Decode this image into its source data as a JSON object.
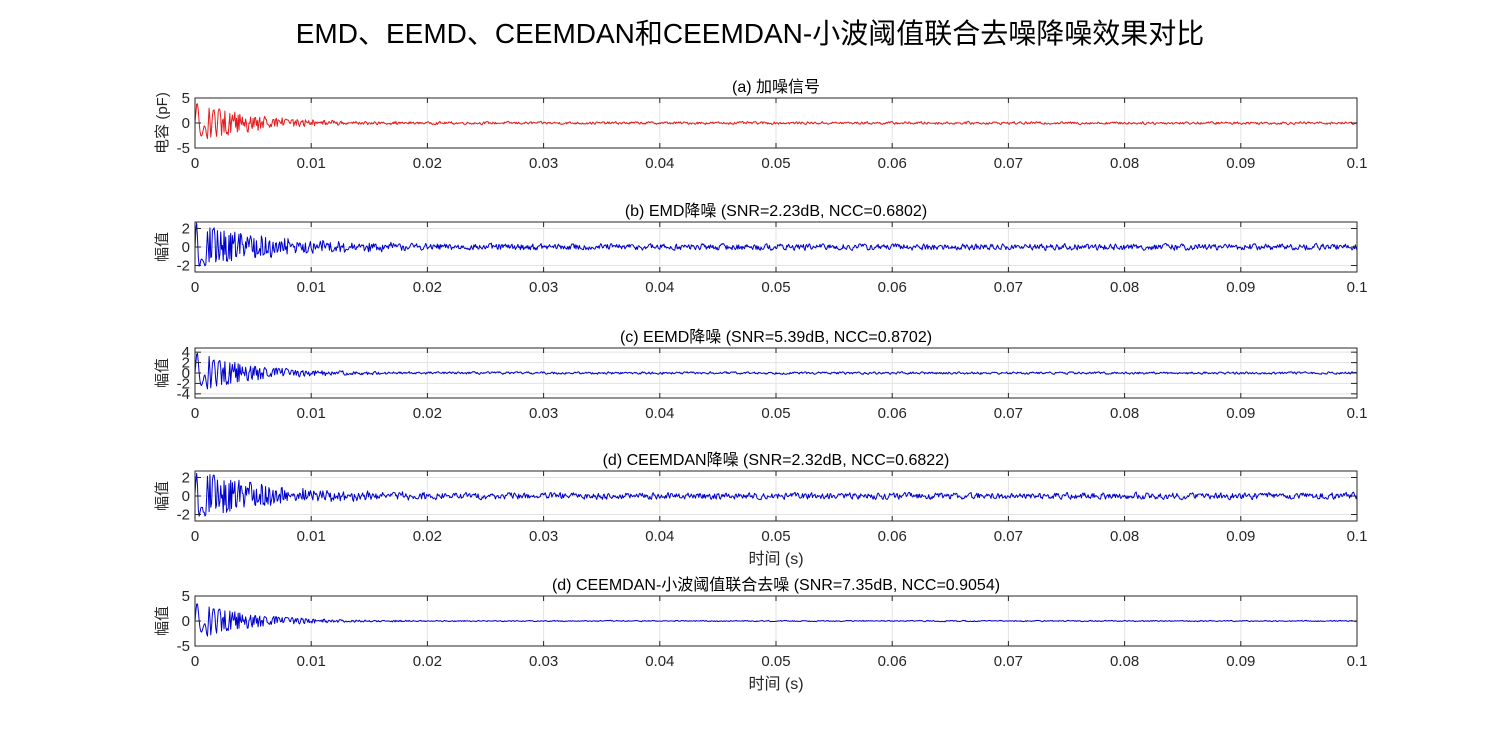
{
  "figure": {
    "title": "EMD、EEMD、CEEMDAN和CEEMDAN-小波阈值联合去噪降噪效果对比"
  },
  "chart_data": [
    {
      "type": "line",
      "title": "(a) 加噪信号",
      "ylabel": "电容 (pF)",
      "xlabel": "",
      "xlim": [
        0,
        0.1
      ],
      "ylim": [
        -5,
        5
      ],
      "xticks": [
        "0",
        "0.01",
        "0.02",
        "0.03",
        "0.04",
        "0.05",
        "0.06",
        "0.07",
        "0.08",
        "0.09",
        "0.1"
      ],
      "yticks": [
        "-5",
        "0",
        "5"
      ],
      "grid": true,
      "series": [
        {
          "color": "#e41a1c",
          "decay_amp": 4.2,
          "decay_tau": 0.0045,
          "noise_amp": 0.35,
          "freq_hz": 1000
        }
      ]
    },
    {
      "type": "line",
      "title": "(b) EMD降噪 (SNR=2.23dB, NCC=0.6802)",
      "ylabel": "幅值",
      "xlabel": "",
      "xlim": [
        0,
        0.1
      ],
      "ylim": [
        -2.7,
        2.7
      ],
      "xticks": [
        "0",
        "0.01",
        "0.02",
        "0.03",
        "0.04",
        "0.05",
        "0.06",
        "0.07",
        "0.08",
        "0.09",
        "0.1"
      ],
      "yticks": [
        "-2",
        "0",
        "2"
      ],
      "grid": true,
      "series": [
        {
          "color": "#0000cc",
          "decay_amp": 2.5,
          "decay_tau": 0.006,
          "noise_amp": 0.45,
          "freq_hz": 1500
        }
      ]
    },
    {
      "type": "line",
      "title": "(c) EEMD降噪 (SNR=5.39dB, NCC=0.8702)",
      "ylabel": "幅值",
      "xlabel": "",
      "xlim": [
        0,
        0.1
      ],
      "ylim": [
        -4.8,
        4.8
      ],
      "xticks": [
        "0",
        "0.01",
        "0.02",
        "0.03",
        "0.04",
        "0.05",
        "0.06",
        "0.07",
        "0.08",
        "0.09",
        "0.1"
      ],
      "yticks": [
        "-4",
        "-2",
        "0",
        "2",
        "4"
      ],
      "grid": true,
      "series": [
        {
          "color": "#0000cc",
          "decay_amp": 4.0,
          "decay_tau": 0.0045,
          "noise_amp": 0.3,
          "freq_hz": 1000
        }
      ]
    },
    {
      "type": "line",
      "title": "(d) CEEMDAN降噪 (SNR=2.32dB, NCC=0.6822)",
      "ylabel": "幅值",
      "xlabel": "时间 (s)",
      "xlim": [
        0,
        0.1
      ],
      "ylim": [
        -2.7,
        2.7
      ],
      "xticks": [
        "0",
        "0.01",
        "0.02",
        "0.03",
        "0.04",
        "0.05",
        "0.06",
        "0.07",
        "0.08",
        "0.09",
        "0.1"
      ],
      "yticks": [
        "-2",
        "0",
        "2"
      ],
      "grid": true,
      "series": [
        {
          "color": "#0000cc",
          "decay_amp": 2.5,
          "decay_tau": 0.006,
          "noise_amp": 0.45,
          "freq_hz": 1500
        }
      ]
    },
    {
      "type": "line",
      "title": "(d) CEEMDAN-小波阈值联合去噪 (SNR=7.35dB, NCC=0.9054)",
      "ylabel": "幅值",
      "xlabel": "时间 (s)",
      "xlim": [
        0,
        0.1
      ],
      "ylim": [
        -5,
        5
      ],
      "xticks": [
        "0",
        "0.01",
        "0.02",
        "0.03",
        "0.04",
        "0.05",
        "0.06",
        "0.07",
        "0.08",
        "0.09",
        "0.1"
      ],
      "yticks": [
        "-5",
        "0",
        "5"
      ],
      "grid": true,
      "series": [
        {
          "color": "#0000cc",
          "decay_amp": 3.8,
          "decay_tau": 0.0045,
          "noise_amp": 0.15,
          "freq_hz": 1000
        }
      ]
    }
  ]
}
